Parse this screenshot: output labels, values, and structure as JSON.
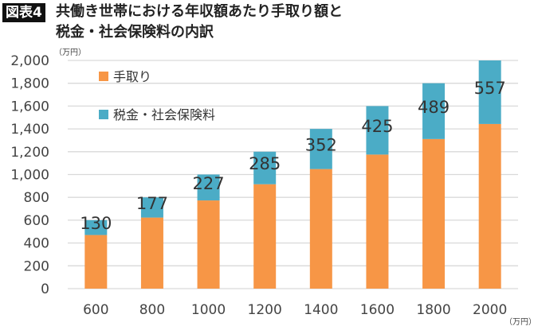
{
  "header": {
    "badge": "図表4",
    "title_line1": "共働き世帯における年収額あたり手取り額と",
    "title_line2": "税金・社会保険料の内訳"
  },
  "chart_data": {
    "type": "bar",
    "stacked": true,
    "categories": [
      "600",
      "800",
      "1000",
      "1200",
      "1400",
      "1600",
      "1800",
      "2000"
    ],
    "series": [
      {
        "name": "手取り",
        "values": [
          470,
          623,
          773,
          915,
          1048,
          1175,
          1311,
          1443
        ],
        "color": "#F79646"
      },
      {
        "name": "税金・社会保険料",
        "values": [
          130,
          177,
          227,
          285,
          352,
          425,
          489,
          557
        ],
        "color": "#4BACC6"
      }
    ],
    "data_labels": [
      "130",
      "177",
      "227",
      "285",
      "352",
      "425",
      "489",
      "557"
    ],
    "y_ticks": [
      "0",
      "200",
      "400",
      "600",
      "800",
      "1,000",
      "1,200",
      "1,400",
      "1,600",
      "1,800",
      "2,000"
    ],
    "ylim": [
      0,
      2000
    ],
    "y_unit": "（万円）",
    "x_unit": "（万円）",
    "grid": true,
    "legend": "top-left"
  }
}
